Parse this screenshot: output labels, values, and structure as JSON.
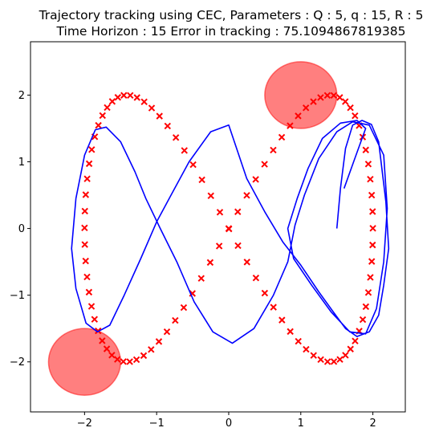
{
  "chart_data": {
    "type": "scatter",
    "title_line1": "Trajectory tracking using CEC, Parameters : Q : 5, q : 15, R : 5",
    "title_line2": "Time Horizon : 15 Error in tracking : 75.1094867819385",
    "xlim": [
      -2.75,
      2.45
    ],
    "ylim": [
      -2.75,
      2.8
    ],
    "xticks": [
      -2,
      -1,
      0,
      1,
      2
    ],
    "yticks": [
      -2,
      -1,
      0,
      1,
      2
    ],
    "xtick_labels": [
      "−2",
      "−1",
      "0",
      "1",
      "2"
    ],
    "ytick_labels": [
      "−2",
      "−1",
      "0",
      "1",
      "2"
    ],
    "obstacles": [
      {
        "name": "obstacle-top-right",
        "cx": 1.0,
        "cy": 2.0,
        "r": 0.5
      },
      {
        "name": "obstacle-bottom-left",
        "cx": -2.0,
        "cy": -2.0,
        "r": 0.5
      }
    ],
    "colors": {
      "reference": "#ff0000",
      "trajectory": "#0000ff",
      "obstacle": "#ff0000"
    },
    "reference_points_param": {
      "formula": "x = 2 sin(t), y = 2 sin(2t)",
      "count": 100,
      "t_step": 0.0628
    },
    "trajectory_points": [
      [
        1.5,
        0.0
      ],
      [
        1.55,
        0.6
      ],
      [
        1.62,
        1.2
      ],
      [
        1.72,
        1.55
      ],
      [
        1.85,
        1.62
      ],
      [
        1.98,
        1.56
      ],
      [
        2.08,
        1.3
      ],
      [
        2.18,
        0.4
      ],
      [
        2.22,
        -0.3
      ],
      [
        2.15,
        -0.85
      ],
      [
        2.08,
        -1.3
      ],
      [
        1.95,
        -1.55
      ],
      [
        1.78,
        -1.62
      ],
      [
        1.62,
        -1.5
      ],
      [
        1.45,
        -1.25
      ],
      [
        1.25,
        -0.95
      ],
      [
        1.0,
        -0.55
      ],
      [
        0.75,
        -0.2
      ],
      [
        0.5,
        0.25
      ],
      [
        0.25,
        0.75
      ],
      [
        0.0,
        1.55
      ],
      [
        -0.25,
        1.45
      ],
      [
        -0.55,
        1.0
      ],
      [
        -0.8,
        0.5
      ],
      [
        -1.0,
        0.1
      ],
      [
        -1.22,
        -0.45
      ],
      [
        -1.45,
        -1.0
      ],
      [
        -1.65,
        -1.45
      ],
      [
        -1.82,
        -1.55
      ],
      [
        -1.98,
        -1.42
      ],
      [
        -2.12,
        -0.9
      ],
      [
        -2.18,
        -0.3
      ],
      [
        -2.12,
        0.45
      ],
      [
        -2.0,
        1.1
      ],
      [
        -1.85,
        1.48
      ],
      [
        -1.7,
        1.52
      ],
      [
        -1.5,
        1.3
      ],
      [
        -1.3,
        0.85
      ],
      [
        -1.15,
        0.45
      ],
      [
        -0.95,
        0.0
      ],
      [
        -0.72,
        -0.5
      ],
      [
        -0.48,
        -1.1
      ],
      [
        -0.22,
        -1.55
      ],
      [
        0.05,
        -1.72
      ],
      [
        0.35,
        -1.5
      ],
      [
        0.62,
        -1.0
      ],
      [
        0.82,
        -0.5
      ],
      [
        0.92,
        0.05
      ],
      [
        1.05,
        0.5
      ],
      [
        1.25,
        1.05
      ],
      [
        1.5,
        1.45
      ],
      [
        1.72,
        1.6
      ],
      [
        1.95,
        1.55
      ],
      [
        2.15,
        1.1
      ],
      [
        2.2,
        0.3
      ],
      [
        2.15,
        -0.5
      ],
      [
        2.05,
        -1.2
      ],
      [
        1.9,
        -1.58
      ],
      [
        1.68,
        -1.55
      ],
      [
        1.42,
        -1.25
      ],
      [
        1.15,
        -0.85
      ],
      [
        0.9,
        -0.45
      ],
      [
        0.82,
        0.0
      ],
      [
        0.95,
        0.45
      ],
      [
        1.1,
        0.9
      ],
      [
        1.3,
        1.35
      ],
      [
        1.55,
        1.58
      ],
      [
        1.78,
        1.62
      ],
      [
        1.9,
        1.5
      ],
      [
        1.75,
        1.05
      ],
      [
        1.6,
        0.6
      ]
    ]
  }
}
